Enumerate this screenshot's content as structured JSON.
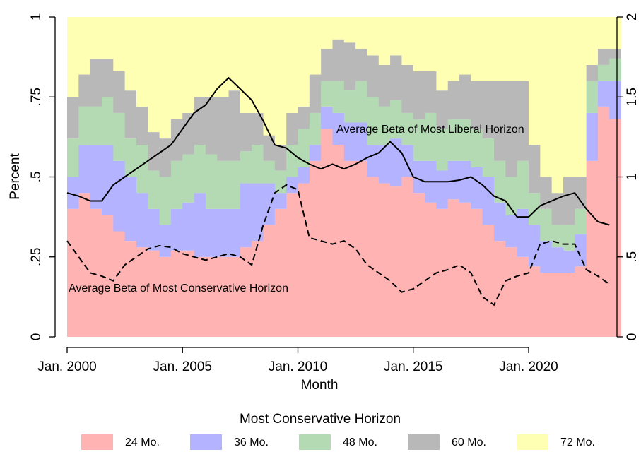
{
  "chart_data": {
    "type": "bar",
    "stacked": true,
    "x_label": "Month",
    "y_label": "Percent",
    "legend_title": "Most Conservative Horizon",
    "legend": "bottom",
    "x": [
      "2000-01",
      "2000-07",
      "2001-01",
      "2001-07",
      "2002-01",
      "2002-07",
      "2003-01",
      "2003-07",
      "2004-01",
      "2004-07",
      "2005-01",
      "2005-07",
      "2006-01",
      "2006-07",
      "2007-01",
      "2007-07",
      "2008-01",
      "2008-07",
      "2009-01",
      "2009-07",
      "2010-01",
      "2010-07",
      "2011-01",
      "2011-07",
      "2012-01",
      "2012-07",
      "2013-01",
      "2013-07",
      "2014-01",
      "2014-07",
      "2015-01",
      "2015-07",
      "2016-01",
      "2016-07",
      "2017-01",
      "2017-07",
      "2018-01",
      "2018-07",
      "2019-01",
      "2019-07",
      "2020-01",
      "2020-07",
      "2021-01",
      "2021-07",
      "2022-01",
      "2022-07",
      "2023-01",
      "2023-07"
    ],
    "xlim": [
      "2000-01",
      "2023-07"
    ],
    "xticks": [
      {
        "value": "2000-01",
        "label": "Jan. 2000"
      },
      {
        "value": "2005-01",
        "label": "Jan. 2005"
      },
      {
        "value": "2010-01",
        "label": "Jan. 2010"
      },
      {
        "value": "2015-01",
        "label": "Jan. 2015"
      },
      {
        "value": "2020-01",
        "label": "Jan. 2020"
      }
    ],
    "ylim": [
      0,
      1
    ],
    "yticks": [
      0,
      {
        "value": 0.25,
        "label": ".25"
      },
      {
        "value": 0.5,
        "label": ".5"
      },
      {
        "value": 0.75,
        "label": ".75"
      },
      1
    ],
    "y2lim": [
      0,
      2
    ],
    "y2ticks": [
      0,
      {
        "value": 0.5,
        "label": ".5"
      },
      1,
      1.5,
      2
    ],
    "series": [
      {
        "name": "24 Mo.",
        "color": "#ffb3b3",
        "values": [
          0.4,
          0.45,
          0.4,
          0.38,
          0.33,
          0.3,
          0.28,
          0.27,
          0.25,
          0.27,
          0.27,
          0.25,
          0.25,
          0.25,
          0.25,
          0.28,
          0.3,
          0.35,
          0.4,
          0.45,
          0.48,
          0.55,
          0.65,
          0.6,
          0.55,
          0.55,
          0.5,
          0.48,
          0.47,
          0.5,
          0.45,
          0.42,
          0.4,
          0.43,
          0.42,
          0.4,
          0.35,
          0.3,
          0.28,
          0.25,
          0.22,
          0.2,
          0.2,
          0.2,
          0.22,
          0.55,
          0.72,
          0.68
        ]
      },
      {
        "name": "36 Mo.",
        "color": "#b3b3ff",
        "values": [
          0.1,
          0.15,
          0.2,
          0.22,
          0.22,
          0.2,
          0.17,
          0.13,
          0.1,
          0.13,
          0.15,
          0.2,
          0.15,
          0.15,
          0.15,
          0.2,
          0.18,
          0.13,
          0.05,
          0.05,
          0.05,
          0.05,
          0.07,
          0.1,
          0.12,
          0.12,
          0.1,
          0.12,
          0.15,
          0.1,
          0.1,
          0.13,
          0.12,
          0.12,
          0.13,
          0.13,
          0.15,
          0.12,
          0.1,
          0.15,
          0.13,
          0.1,
          0.08,
          0.07,
          0.1,
          0.15,
          0.08,
          0.12
        ]
      },
      {
        "name": "48 Mo.",
        "color": "#b3dab3",
        "values": [
          0.12,
          0.12,
          0.12,
          0.15,
          0.15,
          0.12,
          0.15,
          0.12,
          0.15,
          0.15,
          0.15,
          0.15,
          0.17,
          0.15,
          0.15,
          0.1,
          0.12,
          0.07,
          0.07,
          0.1,
          0.12,
          0.1,
          0.08,
          0.1,
          0.1,
          0.13,
          0.15,
          0.12,
          0.12,
          0.1,
          0.13,
          0.15,
          0.13,
          0.13,
          0.13,
          0.12,
          0.12,
          0.13,
          0.12,
          0.15,
          0.1,
          0.1,
          0.07,
          0.08,
          0.08,
          0.1,
          0.05,
          0.07
        ]
      },
      {
        "name": "60 Mo.",
        "color": "#b8b8b8",
        "values": [
          0.13,
          0.1,
          0.15,
          0.12,
          0.13,
          0.15,
          0.12,
          0.12,
          0.12,
          0.13,
          0.13,
          0.15,
          0.18,
          0.2,
          0.22,
          0.12,
          0.1,
          0.08,
          0.08,
          0.1,
          0.07,
          0.12,
          0.1,
          0.13,
          0.15,
          0.1,
          0.13,
          0.13,
          0.14,
          0.15,
          0.15,
          0.13,
          0.12,
          0.12,
          0.14,
          0.15,
          0.18,
          0.25,
          0.3,
          0.25,
          0.15,
          0.1,
          0.1,
          0.15,
          0.1,
          0.05,
          0.05,
          0.03
        ]
      },
      {
        "name": "72 Mo.",
        "color": "#ffffb3",
        "values": [
          0.25,
          0.18,
          0.13,
          0.13,
          0.17,
          0.23,
          0.28,
          0.36,
          0.38,
          0.32,
          0.3,
          0.25,
          0.25,
          0.25,
          0.23,
          0.3,
          0.3,
          0.37,
          0.4,
          0.3,
          0.28,
          0.18,
          0.1,
          0.07,
          0.08,
          0.1,
          0.12,
          0.15,
          0.12,
          0.15,
          0.17,
          0.17,
          0.23,
          0.2,
          0.18,
          0.2,
          0.2,
          0.2,
          0.2,
          0.2,
          0.4,
          0.5,
          0.55,
          0.5,
          0.5,
          0.15,
          0.1,
          0.1
        ]
      },
      {
        "type": "line",
        "axis": "y2",
        "color": "#000000",
        "dash": false,
        "annotation": "Average Beta of Most Liberal Horizon",
        "values": [
          0.9,
          0.88,
          0.85,
          0.85,
          0.95,
          1.0,
          1.05,
          1.1,
          1.15,
          1.2,
          1.3,
          1.4,
          1.45,
          1.55,
          1.62,
          1.55,
          1.48,
          1.35,
          1.2,
          1.18,
          1.12,
          1.08,
          1.05,
          1.08,
          1.05,
          1.08,
          1.12,
          1.15,
          1.22,
          1.15,
          1.0,
          0.97,
          0.97,
          0.97,
          0.98,
          1.0,
          0.95,
          0.88,
          0.85,
          0.75,
          0.75,
          0.82,
          0.85,
          0.88,
          0.9,
          0.8,
          0.72,
          0.7
        ]
      },
      {
        "type": "line",
        "axis": "y2",
        "color": "#000000",
        "dash": true,
        "annotation": "Average Beta of Most Conservative Horizon",
        "values": [
          0.6,
          0.5,
          0.4,
          0.38,
          0.35,
          0.45,
          0.5,
          0.55,
          0.57,
          0.56,
          0.52,
          0.5,
          0.48,
          0.5,
          0.52,
          0.5,
          0.45,
          0.7,
          0.9,
          0.95,
          0.92,
          0.62,
          0.6,
          0.58,
          0.6,
          0.55,
          0.45,
          0.4,
          0.35,
          0.28,
          0.3,
          0.35,
          0.4,
          0.42,
          0.45,
          0.4,
          0.25,
          0.2,
          0.35,
          0.38,
          0.4,
          0.58,
          0.6,
          0.58,
          0.58,
          0.42,
          0.38,
          0.33
        ]
      }
    ]
  }
}
